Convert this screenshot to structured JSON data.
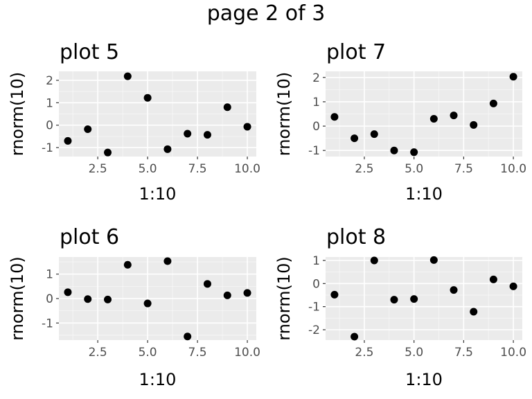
{
  "page_title": "page 2 of 3",
  "chart_data": [
    {
      "type": "scatter",
      "title": "plot 5",
      "xlabel": "1:10",
      "ylabel": "rnorm(10)",
      "x": [
        1,
        2,
        3,
        4,
        5,
        6,
        7,
        8,
        9,
        10
      ],
      "y": [
        -0.7,
        -0.18,
        -1.22,
        2.18,
        1.22,
        -1.07,
        -0.38,
        -0.43,
        0.8,
        -0.07
      ],
      "xlim": [
        0.55,
        10.45
      ],
      "ylim": [
        -1.4,
        2.4
      ],
      "xticks": [
        2.5,
        5.0,
        7.5,
        10.0
      ],
      "xtick_labels": [
        "2.5",
        "5.0",
        "7.5",
        "10.0"
      ],
      "yticks": [
        -1,
        0,
        1,
        2
      ],
      "ytick_labels": [
        "-1",
        "0",
        "1",
        "2"
      ],
      "grid": true
    },
    {
      "type": "scatter",
      "title": "plot 7",
      "xlabel": "1:10",
      "ylabel": "rnorm(10)",
      "x": [
        1,
        2,
        3,
        4,
        5,
        6,
        7,
        8,
        9,
        10
      ],
      "y": [
        0.38,
        -0.5,
        -0.33,
        -1.0,
        -1.07,
        0.3,
        0.44,
        0.05,
        0.93,
        2.03
      ],
      "xlim": [
        0.55,
        10.45
      ],
      "ylim": [
        -1.25,
        2.25
      ],
      "xticks": [
        2.5,
        5.0,
        7.5,
        10.0
      ],
      "xtick_labels": [
        "2.5",
        "5.0",
        "7.5",
        "10.0"
      ],
      "yticks": [
        -1,
        0,
        1,
        2
      ],
      "ytick_labels": [
        "-1",
        "0",
        "1",
        "2"
      ],
      "grid": true
    },
    {
      "type": "scatter",
      "title": "plot 6",
      "xlabel": "1:10",
      "ylabel": "rnorm(10)",
      "x": [
        1,
        2,
        3,
        4,
        5,
        6,
        7,
        8,
        9,
        10
      ],
      "y": [
        0.26,
        -0.02,
        -0.04,
        1.38,
        -0.2,
        1.53,
        -1.55,
        0.6,
        0.13,
        0.23
      ],
      "xlim": [
        0.55,
        10.45
      ],
      "ylim": [
        -1.7,
        1.7
      ],
      "xticks": [
        2.5,
        5.0,
        7.5,
        10.0
      ],
      "xtick_labels": [
        "2.5",
        "5.0",
        "7.5",
        "10.0"
      ],
      "yticks": [
        -1,
        0,
        1
      ],
      "ytick_labels": [
        "-1",
        "0",
        "1"
      ],
      "grid": true
    },
    {
      "type": "scatter",
      "title": "plot 8",
      "xlabel": "1:10",
      "ylabel": "rnorm(10)",
      "x": [
        1,
        2,
        3,
        4,
        5,
        6,
        7,
        8,
        9,
        10
      ],
      "y": [
        -0.48,
        -2.3,
        1.0,
        -0.7,
        -0.67,
        1.02,
        -0.28,
        -1.22,
        0.18,
        -0.12
      ],
      "xlim": [
        0.55,
        10.45
      ],
      "ylim": [
        -2.45,
        1.15
      ],
      "xticks": [
        2.5,
        5.0,
        7.5,
        10.0
      ],
      "xtick_labels": [
        "2.5",
        "5.0",
        "7.5",
        "10.0"
      ],
      "yticks": [
        -2,
        -1,
        0,
        1
      ],
      "ytick_labels": [
        "-2",
        "-1",
        "0",
        "1"
      ],
      "grid": true
    }
  ]
}
